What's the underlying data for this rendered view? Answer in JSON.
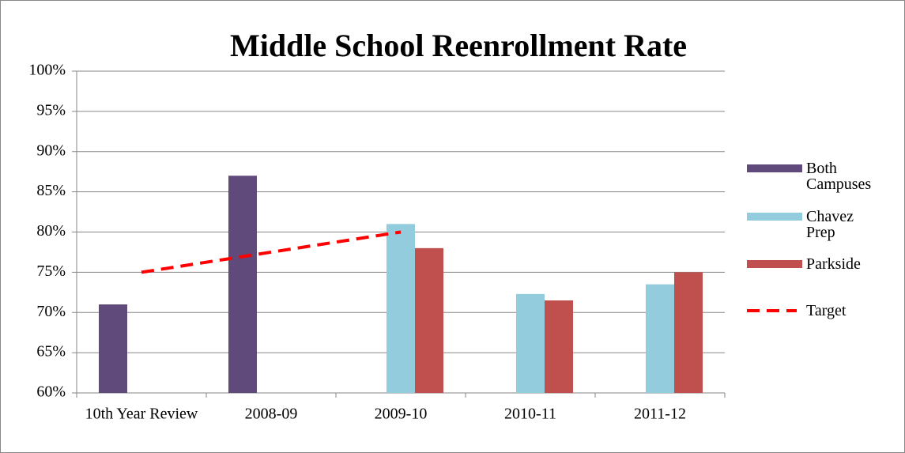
{
  "chart_data": {
    "type": "bar",
    "title": "Middle School Reenrollment Rate",
    "categories": [
      "10th Year Review",
      "2008-09",
      "2009-10",
      "2010-11",
      "2011-12"
    ],
    "series": [
      {
        "name": "Both Campuses",
        "color": "#604a7b",
        "values": [
          71,
          87,
          null,
          null,
          null
        ]
      },
      {
        "name": "Chavez Prep",
        "color": "#93cddd",
        "values": [
          null,
          null,
          81,
          72.3,
          73.5
        ]
      },
      {
        "name": "Parkside",
        "color": "#c0504d",
        "values": [
          null,
          null,
          78,
          71.5,
          75
        ]
      },
      {
        "name": "Target",
        "type": "line",
        "color": "#ff0000",
        "dashed": true,
        "values": [
          75,
          77.5,
          80,
          null,
          null
        ]
      }
    ],
    "ylim": [
      60,
      100
    ],
    "yticks": [
      {
        "value": 60,
        "label": "60%"
      },
      {
        "value": 65,
        "label": "65%"
      },
      {
        "value": 70,
        "label": "70%"
      },
      {
        "value": 75,
        "label": "75%"
      },
      {
        "value": 80,
        "label": "80%"
      },
      {
        "value": 85,
        "label": "85%"
      },
      {
        "value": 90,
        "label": "90%"
      },
      {
        "value": 95,
        "label": "95%"
      },
      {
        "value": 100,
        "label": "100%"
      }
    ],
    "grid": true,
    "legend": "right"
  }
}
